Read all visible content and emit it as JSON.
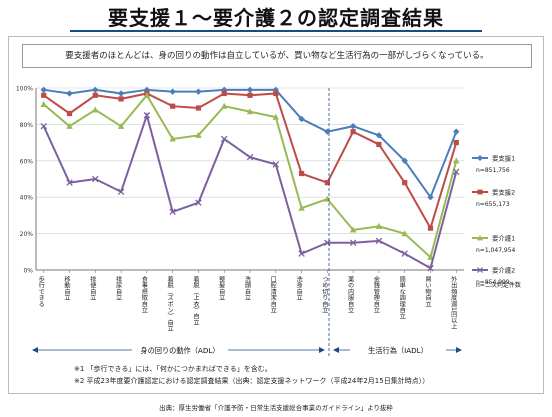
{
  "page_title": "要支援１〜要介護２の認定調査結果",
  "banner": "要支援者のほとんどは、身の回りの動作は自立しているが、買い物など生活行為の一部がしづらくなっている。",
  "chart_data": {
    "type": "line",
    "title": "",
    "ylabel": "",
    "xlabel": "",
    "ylim": [
      0,
      100
    ],
    "y_ticks": [
      "0%",
      "20%",
      "40%",
      "60%",
      "80%",
      "100%"
    ],
    "grid": true,
    "legend_position": "right",
    "categories": [
      "歩行できる",
      "移動自立",
      "排便自立",
      "排尿自立",
      "食事摂取自立",
      "着脱（ズボン）自立",
      "着脱（上衣）自立",
      "整髪自立",
      "洗顔自立",
      "口腔清潔自立",
      "洗身自立",
      "つめ切り自立",
      "薬の内服自立",
      "金銭管理自立",
      "簡単な調理自立",
      "買い物自立",
      "外出頻度週1回以上"
    ],
    "series": [
      {
        "name": "要支援1",
        "n": "n=851,756",
        "color": "#4a7ebb",
        "marker": "diamond",
        "values": [
          99,
          97,
          99,
          97,
          99,
          98,
          98,
          99,
          99,
          99,
          83,
          76,
          79,
          74,
          60,
          40,
          76
        ]
      },
      {
        "name": "要支援2",
        "n": "n=655,173",
        "color": "#be4b48",
        "marker": "square",
        "values": [
          96,
          86,
          96,
          94,
          97,
          90,
          89,
          97,
          96,
          97,
          53,
          48,
          76,
          69,
          48,
          23,
          70
        ]
      },
      {
        "name": "要介護1",
        "n": "n=1,047,954",
        "color": "#98b954",
        "marker": "triangle",
        "values": [
          91,
          79,
          88,
          79,
          96,
          72,
          74,
          90,
          87,
          84,
          34,
          39,
          22,
          24,
          20,
          7,
          60
        ]
      },
      {
        "name": "要介護2",
        "n": "n=854,999",
        "color": "#7d60a0",
        "marker": "x",
        "values": [
          79,
          48,
          50,
          43,
          85,
          32,
          37,
          72,
          62,
          58,
          9,
          15,
          15,
          16,
          9,
          1,
          54
        ]
      }
    ],
    "footer_note": "n=二次判定件数",
    "groups": [
      {
        "label": "身の回りの動作（ADL）",
        "from": 0,
        "to": 11
      },
      {
        "label": "生活行為（IADL）",
        "from": 12,
        "to": 16
      }
    ]
  },
  "notes": [
    "※1 「歩行できる」には、「何かにつかまればできる」を含む。",
    "※2 平成23年度要介護認定における認定調査結果（出典：認定支援ネットワーク（平成24年2月15日集計時点））"
  ],
  "source": "出典：厚生労働省「介護予防・日常生活支援総合事業のガイドライン」より抜粋"
}
